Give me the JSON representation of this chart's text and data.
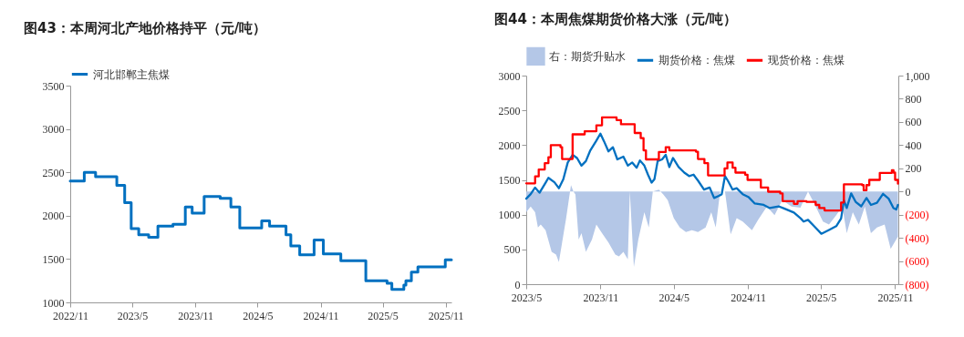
{
  "chart_data": [
    {
      "type": "step",
      "title": "图43：本周河北产地价格持平（元/吨）",
      "legend": "top",
      "grid": false,
      "xlim": [
        "2022-11-01",
        "2025-11-18"
      ],
      "xticks": [
        {
          "value": "2022-11",
          "label": "2022/11"
        },
        {
          "value": "2023-05",
          "label": "2023/5"
        },
        {
          "value": "2023-11",
          "label": "2023/11"
        },
        {
          "value": "2024-05",
          "label": "2024/5"
        },
        {
          "value": "2024-11",
          "label": "2024/11"
        },
        {
          "value": "2025-05",
          "label": "2025/5"
        },
        {
          "value": "2025-11",
          "label": "2025/11"
        }
      ],
      "ylim": [
        1000,
        3500
      ],
      "yticks": [
        1000,
        1500,
        2000,
        2500,
        3000,
        3500
      ],
      "x": [
        "2022-11-01",
        "2022-12-12",
        "2023-01-14",
        "2023-03-17",
        "2023-04-09",
        "2023-04-28",
        "2023-05-20",
        "2023-06-18",
        "2023-07-15",
        "2023-08-28",
        "2023-10-03",
        "2023-10-23",
        "2023-11-27",
        "2024-01-13",
        "2024-02-13",
        "2024-03-10",
        "2024-05-13",
        "2024-06-05",
        "2024-07-23",
        "2024-08-06",
        "2024-09-01",
        "2024-10-13",
        "2024-11-09",
        "2024-12-30",
        "2025-03-13",
        "2025-05-14",
        "2025-05-28",
        "2025-07-02",
        "2025-07-08",
        "2025-07-24",
        "2025-08-12",
        "2025-10-31",
        "2025-11-18"
      ],
      "series": [
        {
          "name": "河北邯郸主焦煤",
          "color": "#0070c0",
          "values": [
            2400,
            2500,
            2450,
            2350,
            2150,
            1850,
            1780,
            1750,
            1880,
            1900,
            2100,
            2030,
            2220,
            2200,
            2100,
            1860,
            1940,
            1880,
            1780,
            1650,
            1550,
            1720,
            1560,
            1480,
            1250,
            1220,
            1150,
            1200,
            1250,
            1350,
            1410,
            1490,
            1490
          ]
        }
      ]
    },
    {
      "type": "line",
      "title": "图44：本周焦煤期货价格大涨（元/吨）",
      "legend": "top",
      "grid": false,
      "xlim": [
        "2023-05-01",
        "2025-11-09"
      ],
      "xticks": [
        {
          "value": "2023-05",
          "label": "2023/5"
        },
        {
          "value": "2023-11",
          "label": "2023/11"
        },
        {
          "value": "2024-05",
          "label": "2024/5"
        },
        {
          "value": "2024-11",
          "label": "2024/11"
        },
        {
          "value": "2025-05",
          "label": "2025/5"
        },
        {
          "value": "2025-11",
          "label": "2025/11"
        }
      ],
      "ylim": [
        0,
        3000
      ],
      "yticks": [
        0,
        500,
        1000,
        1500,
        2000,
        2500,
        3000
      ],
      "y2lim": [
        -800,
        1000
      ],
      "y2ticks": [
        {
          "value": -800,
          "label": "(800)"
        },
        {
          "value": -600,
          "label": "(600)"
        },
        {
          "value": -400,
          "label": "(400)"
        },
        {
          "value": -200,
          "label": "(200)"
        },
        0,
        200,
        400,
        600,
        800,
        {
          "value": 1000,
          "label": "1,000"
        }
      ],
      "series": [
        {
          "name": "右：期货升贴水",
          "type": "area",
          "axis": "y2",
          "color": "#b4c7e7",
          "x": [
            "2023-05-01",
            "2023-05-12",
            "2023-05-23",
            "2023-05-30",
            "2023-06-06",
            "2023-06-18",
            "2023-07-03",
            "2023-07-14",
            "2023-07-21",
            "2023-07-29",
            "2023-08-08",
            "2023-08-20",
            "2023-08-26",
            "2023-08-31",
            "2023-09-08",
            "2023-09-15",
            "2023-09-26",
            "2023-10-11",
            "2023-10-22",
            "2023-11-05",
            "2023-11-21",
            "2023-12-08",
            "2023-12-17",
            "2023-12-28",
            "2024-01-08",
            "2024-01-13",
            "2024-01-23",
            "2024-02-03",
            "2024-02-18",
            "2024-02-29",
            "2024-03-10",
            "2024-03-25",
            "2024-04-05",
            "2024-04-16",
            "2024-05-01",
            "2024-05-16",
            "2024-05-31",
            "2024-06-15",
            "2024-06-30",
            "2024-07-19",
            "2024-08-02",
            "2024-08-13",
            "2024-08-24",
            "2024-09-05",
            "2024-09-19",
            "2024-10-04",
            "2024-10-19",
            "2024-11-11",
            "2024-11-26",
            "2024-12-18",
            "2025-01-06",
            "2025-01-25",
            "2025-02-17",
            "2025-03-11",
            "2025-03-30",
            "2025-04-14",
            "2025-05-06",
            "2025-05-21",
            "2025-06-08",
            "2025-06-23",
            "2025-07-04",
            "2025-07-19",
            "2025-08-03",
            "2025-08-18",
            "2025-09-02",
            "2025-09-17",
            "2025-10-06",
            "2025-10-21",
            "2025-11-01",
            "2025-11-08"
          ],
          "values": [
            -180,
            -130,
            -180,
            -310,
            -285,
            -335,
            -520,
            -545,
            -610,
            -440,
            -230,
            55,
            0,
            -25,
            -415,
            -360,
            -520,
            -415,
            -285,
            -360,
            -440,
            -545,
            -560,
            -520,
            -585,
            0,
            -650,
            -415,
            -180,
            -310,
            0,
            15,
            -25,
            -75,
            -230,
            -310,
            -350,
            -335,
            -350,
            -310,
            -180,
            -310,
            0,
            0,
            -370,
            -230,
            -260,
            -335,
            -245,
            -130,
            -205,
            -75,
            -130,
            -140,
            0,
            -100,
            -260,
            -285,
            -205,
            -130,
            -360,
            -180,
            -285,
            -130,
            -360,
            -310,
            -285,
            -495,
            -430,
            -390
          ]
        },
        {
          "name": "期货价格：焦煤",
          "color": "#0070c0",
          "x": [
            "2023-05-01",
            "2023-05-12",
            "2023-05-23",
            "2023-06-03",
            "2023-06-18",
            "2023-06-25",
            "2023-07-10",
            "2023-07-21",
            "2023-08-01",
            "2023-08-12",
            "2023-08-24",
            "2023-09-04",
            "2023-09-15",
            "2023-09-26",
            "2023-10-07",
            "2023-10-21",
            "2023-11-01",
            "2023-11-10",
            "2023-11-21",
            "2023-12-02",
            "2023-12-13",
            "2023-12-28",
            "2024-01-08",
            "2024-01-19",
            "2024-01-30",
            "2024-02-07",
            "2024-02-18",
            "2024-02-27",
            "2024-03-07",
            "2024-03-14",
            "2024-03-22",
            "2024-04-02",
            "2024-04-11",
            "2024-04-20",
            "2024-04-29",
            "2024-05-13",
            "2024-05-27",
            "2024-06-08",
            "2024-06-19",
            "2024-06-30",
            "2024-07-15",
            "2024-07-29",
            "2024-08-09",
            "2024-08-21",
            "2024-08-28",
            "2024-09-05",
            "2024-09-12",
            "2024-09-24",
            "2024-10-04",
            "2024-10-19",
            "2024-11-03",
            "2024-11-18",
            "2024-12-10",
            "2024-12-25",
            "2025-01-16",
            "2025-01-31",
            "2025-02-23",
            "2025-03-12",
            "2025-03-19",
            "2025-03-30",
            "2025-04-14",
            "2025-05-02",
            "2025-05-21",
            "2025-06-08",
            "2025-06-20",
            "2025-06-27",
            "2025-07-04",
            "2025-07-15",
            "2025-07-26",
            "2025-08-09",
            "2025-08-22",
            "2025-09-02",
            "2025-09-17",
            "2025-10-02",
            "2025-10-16",
            "2025-10-28",
            "2025-11-04",
            "2025-11-08"
          ],
          "values": [
            1230,
            1295,
            1390,
            1315,
            1460,
            1530,
            1465,
            1380,
            1510,
            1750,
            1860,
            1815,
            1705,
            1770,
            1925,
            2055,
            2165,
            2055,
            1910,
            1970,
            1795,
            1835,
            1705,
            1750,
            1675,
            1780,
            1705,
            1575,
            1460,
            1510,
            1770,
            1795,
            1860,
            1685,
            1815,
            1685,
            1605,
            1555,
            1575,
            1490,
            1360,
            1390,
            1240,
            1270,
            1295,
            1555,
            1490,
            1360,
            1380,
            1295,
            1250,
            1160,
            1140,
            1095,
            1120,
            1085,
            1030,
            945,
            900,
            925,
            835,
            725,
            780,
            835,
            945,
            1205,
            1095,
            1305,
            1185,
            1120,
            1240,
            1140,
            1170,
            1300,
            1230,
            1095,
            1075,
            1140
          ]
        },
        {
          "name": "现货价格：焦煤",
          "type": "step",
          "color": "#ff0000",
          "x": [
            "2023-05-01",
            "2023-05-23",
            "2023-06-01",
            "2023-06-16",
            "2023-06-25",
            "2023-07-01",
            "2023-07-25",
            "2023-07-29",
            "2023-08-24",
            "2023-09-23",
            "2023-10-22",
            "2023-11-05",
            "2023-12-11",
            "2023-12-22",
            "2024-01-25",
            "2024-02-09",
            "2024-02-16",
            "2024-02-22",
            "2024-03-25",
            "2024-04-11",
            "2024-04-20",
            "2024-06-25",
            "2024-06-30",
            "2024-07-16",
            "2024-07-25",
            "2024-08-31",
            "2024-09-04",
            "2024-09-11",
            "2024-09-24",
            "2024-10-01",
            "2024-10-25",
            "2024-10-31",
            "2024-11-22",
            "2024-12-03",
            "2024-12-21",
            "2025-01-20",
            "2025-01-26",
            "2025-02-23",
            "2025-03-04",
            "2025-03-26",
            "2025-04-18",
            "2025-04-27",
            "2025-05-10",
            "2025-06-12",
            "2025-06-20",
            "2025-06-27",
            "2025-08-11",
            "2025-08-15",
            "2025-08-22",
            "2025-08-29",
            "2025-09-24",
            "2025-10-24",
            "2025-10-28",
            "2025-11-01",
            "2025-11-08"
          ],
          "values": [
            1450,
            1550,
            1650,
            1740,
            1825,
            2000,
            1970,
            1800,
            2155,
            2200,
            2285,
            2400,
            2360,
            2300,
            2175,
            2100,
            1925,
            1795,
            1900,
            1970,
            1925,
            1905,
            1800,
            1740,
            1565,
            1565,
            1665,
            1750,
            1675,
            1605,
            1575,
            1500,
            1500,
            1390,
            1330,
            1305,
            1195,
            1155,
            1195,
            1185,
            1140,
            1095,
            1060,
            1060,
            1175,
            1435,
            1425,
            1350,
            1425,
            1500,
            1600,
            1640,
            1605,
            1500,
            1445
          ]
        }
      ]
    }
  ]
}
